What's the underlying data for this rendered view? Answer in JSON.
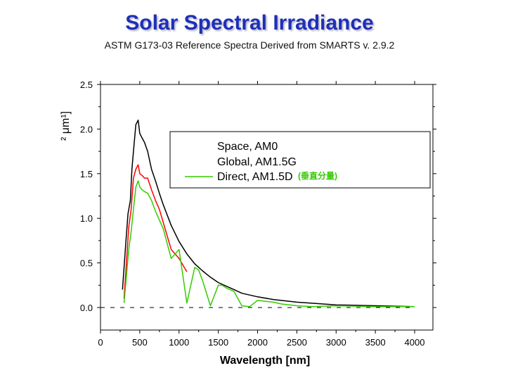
{
  "title": "Solar Spectral Irradiance",
  "subtitle": "ASTM G173-03 Reference Spectra Derived from SMARTS v. 2.9.2",
  "chart_data": {
    "type": "line",
    "xlabel": "Wavelength [nm]",
    "ylabel_fragment": "² μm¹]",
    "xlim": [
      0,
      4000
    ],
    "ylim": [
      0,
      2.5
    ],
    "xticks": [
      "0",
      "500",
      "1000",
      "1500",
      "2000",
      "2500",
      "3000",
      "3500",
      "4000"
    ],
    "yticks": [
      "0.0",
      "0.5",
      "1.0",
      "1.5",
      "2.0",
      "2.5"
    ],
    "legend_position": "top-right",
    "legend": [
      "Space, AM0",
      "Global, AM1.5G",
      "Direct, AM1.5D",
      "(垂直分量)"
    ],
    "series": [
      {
        "name": "Space, AM0",
        "color": "#000000",
        "x": [
          280,
          320,
          350,
          380,
          400,
          420,
          450,
          480,
          500,
          530,
          560,
          600,
          650,
          700,
          750,
          800,
          900,
          1000,
          1100,
          1200,
          1300,
          1400,
          1500,
          1600,
          1700,
          1800,
          2000,
          2200,
          2500,
          3000,
          3500,
          4000
        ],
        "y": [
          0.2,
          0.7,
          1.05,
          1.2,
          1.55,
          1.75,
          2.05,
          2.1,
          1.95,
          1.9,
          1.85,
          1.75,
          1.55,
          1.42,
          1.28,
          1.15,
          0.92,
          0.74,
          0.6,
          0.49,
          0.41,
          0.34,
          0.28,
          0.24,
          0.2,
          0.16,
          0.12,
          0.09,
          0.06,
          0.03,
          0.02,
          0.01
        ]
      },
      {
        "name": "Global, AM1.5G",
        "color": "#ff0000",
        "x": [
          300,
          330,
          360,
          390,
          420,
          450,
          480,
          500,
          530,
          560,
          600,
          650,
          700,
          750,
          800,
          900,
          1000,
          1100
        ],
        "y": [
          0.1,
          0.5,
          0.9,
          1.1,
          1.45,
          1.55,
          1.6,
          1.5,
          1.48,
          1.45,
          1.45,
          1.32,
          1.2,
          1.1,
          0.95,
          0.65,
          0.55,
          0.4
        ]
      },
      {
        "name": "Direct, AM1.5D",
        "color": "#33cc00",
        "x": [
          300,
          330,
          360,
          390,
          420,
          450,
          480,
          500,
          530,
          560,
          600,
          650,
          700,
          750,
          800,
          900,
          1000,
          1100,
          1200,
          1250,
          1300,
          1400,
          1500,
          1550,
          1600,
          1700,
          1800,
          1900,
          2000,
          2100,
          2200,
          2300,
          2500,
          2700,
          3000,
          3500,
          4000
        ],
        "y": [
          0.05,
          0.35,
          0.65,
          0.85,
          1.1,
          1.35,
          1.42,
          1.35,
          1.32,
          1.3,
          1.28,
          1.2,
          1.08,
          0.98,
          0.88,
          0.55,
          0.65,
          0.05,
          0.45,
          0.42,
          0.3,
          0.02,
          0.25,
          0.25,
          0.22,
          0.18,
          0.02,
          0.01,
          0.08,
          0.07,
          0.06,
          0.04,
          0.02,
          0.01,
          0.02,
          0.01,
          0.01
        ]
      }
    ]
  }
}
